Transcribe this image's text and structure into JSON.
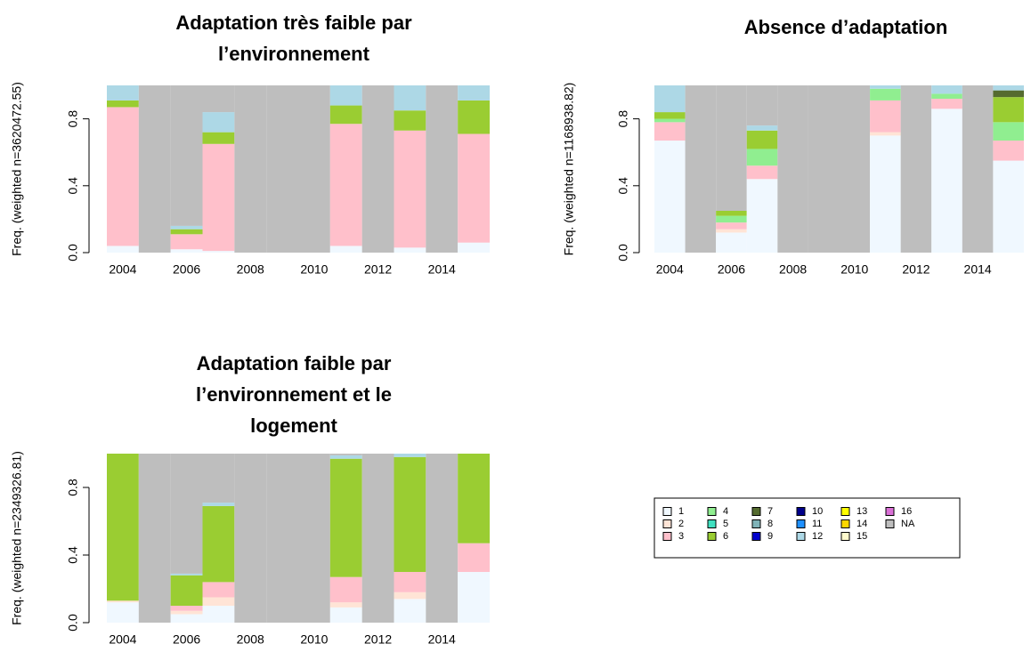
{
  "chart_data": [
    {
      "type": "bar",
      "stacked": true,
      "title": [
        "Adaptation très faible par",
        "l’environnement"
      ],
      "y_label": "Freq. (weighted n=3620472.55)",
      "x": [
        2004,
        2005,
        2006,
        2007,
        2008,
        2009,
        2010,
        2011,
        2012,
        2013,
        2014,
        2015
      ],
      "xlim": [
        2003.5,
        2015.5
      ],
      "xticks": [
        2004,
        2006,
        2008,
        2010,
        2012,
        2014
      ],
      "ylim": [
        0,
        1
      ],
      "yticks": [
        {
          "value": 0,
          "label": "0.0"
        },
        0.4,
        0.8
      ],
      "series": [
        {
          "name": "1",
          "color": "#f0f8ff",
          "values": [
            0.04,
            0,
            0.02,
            0.01,
            0,
            0,
            0,
            0.04,
            0,
            0.03,
            0,
            0.06
          ]
        },
        {
          "name": "3",
          "color": "#ffc0cb",
          "values": [
            0.83,
            0,
            0.09,
            0.64,
            0,
            0,
            0,
            0.73,
            0,
            0.7,
            0,
            0.65
          ]
        },
        {
          "name": "6",
          "color": "#9acd32",
          "values": [
            0.04,
            0,
            0.03,
            0.07,
            0,
            0,
            0,
            0.11,
            0,
            0.12,
            0,
            0.2
          ]
        },
        {
          "name": "12",
          "color": "#add8e6",
          "values": [
            0.09,
            0,
            0.02,
            0.12,
            0,
            0,
            0,
            0.12,
            0,
            0.15,
            0,
            0.09
          ]
        },
        {
          "name": "NA",
          "color": "#bebebe",
          "values": [
            0,
            1,
            0.84,
            0.16,
            1,
            1,
            1,
            0,
            1,
            0,
            1,
            0
          ]
        }
      ]
    },
    {
      "type": "bar",
      "stacked": true,
      "title": [
        "Absence d’adaptation"
      ],
      "y_label": "Freq. (weighted n=1168938.82)",
      "x": [
        2004,
        2005,
        2006,
        2007,
        2008,
        2009,
        2010,
        2011,
        2012,
        2013,
        2014,
        2015
      ],
      "xlim": [
        2003.5,
        2015.5
      ],
      "xticks": [
        2004,
        2006,
        2008,
        2010,
        2012,
        2014
      ],
      "ylim": [
        0,
        1
      ],
      "yticks": [
        {
          "value": 0,
          "label": "0.0"
        },
        0.4,
        0.8
      ],
      "series": [
        {
          "name": "1",
          "color": "#f0f8ff",
          "values": [
            0.67,
            0,
            0.12,
            0.44,
            0,
            0,
            0,
            0.7,
            0,
            0.86,
            0,
            0.55
          ]
        },
        {
          "name": "2",
          "color": "#ffe4d6",
          "values": [
            0,
            0,
            0.02,
            0,
            0,
            0,
            0,
            0.02,
            0,
            0,
            0,
            0
          ]
        },
        {
          "name": "3",
          "color": "#ffc0cb",
          "values": [
            0.11,
            0,
            0.04,
            0.08,
            0,
            0,
            0,
            0.19,
            0,
            0.06,
            0,
            0.12
          ]
        },
        {
          "name": "4",
          "color": "#90ee90",
          "values": [
            0.02,
            0,
            0.04,
            0.1,
            0,
            0,
            0,
            0.07,
            0,
            0.03,
            0,
            0.11
          ]
        },
        {
          "name": "6",
          "color": "#9acd32",
          "values": [
            0.04,
            0,
            0.03,
            0.11,
            0,
            0,
            0,
            0,
            0,
            0,
            0,
            0.15
          ]
        },
        {
          "name": "7",
          "color": "#556b2f",
          "values": [
            0,
            0,
            0,
            0,
            0,
            0,
            0,
            0,
            0,
            0,
            0,
            0.04
          ]
        },
        {
          "name": "12",
          "color": "#add8e6",
          "values": [
            0.16,
            0,
            0,
            0.03,
            0,
            0,
            0,
            0.02,
            0,
            0.05,
            0,
            0.03
          ]
        },
        {
          "name": "NA",
          "color": "#bebebe",
          "values": [
            0,
            1,
            0.75,
            0.24,
            1,
            1,
            1,
            0,
            1,
            0,
            1,
            0
          ]
        }
      ]
    },
    {
      "type": "bar",
      "stacked": true,
      "title": [
        "Adaptation faible par",
        "l’environnement et le",
        "logement"
      ],
      "y_label": "Freq. (weighted n=2349326.81)",
      "x": [
        2004,
        2005,
        2006,
        2007,
        2008,
        2009,
        2010,
        2011,
        2012,
        2013,
        2014,
        2015
      ],
      "xlim": [
        2003.5,
        2015.5
      ],
      "xticks": [
        2004,
        2006,
        2008,
        2010,
        2012,
        2014
      ],
      "ylim": [
        0,
        1
      ],
      "yticks": [
        {
          "value": 0,
          "label": "0.0"
        },
        0.4,
        0.8
      ],
      "series": [
        {
          "name": "1",
          "color": "#f0f8ff",
          "values": [
            0.12,
            0,
            0.05,
            0.1,
            0,
            0,
            0,
            0.09,
            0,
            0.14,
            0,
            0.3
          ]
        },
        {
          "name": "2",
          "color": "#ffe4d6",
          "values": [
            0.01,
            0,
            0.02,
            0.05,
            0,
            0,
            0,
            0.03,
            0,
            0.04,
            0,
            0
          ]
        },
        {
          "name": "3",
          "color": "#ffc0cb",
          "values": [
            0,
            0,
            0.03,
            0.09,
            0,
            0,
            0,
            0.15,
            0,
            0.12,
            0,
            0.17
          ]
        },
        {
          "name": "6",
          "color": "#9acd32",
          "values": [
            0.87,
            0,
            0.18,
            0.45,
            0,
            0,
            0,
            0.7,
            0,
            0.68,
            0,
            0.53
          ]
        },
        {
          "name": "12",
          "color": "#add8e6",
          "values": [
            0,
            0,
            0.01,
            0.02,
            0,
            0,
            0,
            0.02,
            0,
            0.02,
            0,
            0
          ]
        },
        {
          "name": "NA",
          "color": "#bebebe",
          "values": [
            0,
            1,
            0.71,
            0.29,
            1,
            1,
            1,
            0.01,
            1,
            0,
            1,
            0
          ]
        }
      ]
    }
  ],
  "legend": {
    "entries": [
      {
        "name": "1",
        "color": "#f0f8ff"
      },
      {
        "name": "2",
        "color": "#ffe4d6"
      },
      {
        "name": "3",
        "color": "#ffc0cb"
      },
      {
        "name": "4",
        "color": "#90ee90"
      },
      {
        "name": "5",
        "color": "#40e0c0"
      },
      {
        "name": "6",
        "color": "#9acd32"
      },
      {
        "name": "7",
        "color": "#556b2f"
      },
      {
        "name": "8",
        "color": "#7fb3b8"
      },
      {
        "name": "9",
        "color": "#0000cd"
      },
      {
        "name": "10",
        "color": "#00008b"
      },
      {
        "name": "11",
        "color": "#1e90ff"
      },
      {
        "name": "12",
        "color": "#add8e6"
      },
      {
        "name": "13",
        "color": "#ffff00"
      },
      {
        "name": "14",
        "color": "#ffd700"
      },
      {
        "name": "15",
        "color": "#fffacd"
      },
      {
        "name": "16",
        "color": "#da70d6"
      },
      {
        "name": "NA",
        "color": "#bebebe"
      }
    ]
  }
}
